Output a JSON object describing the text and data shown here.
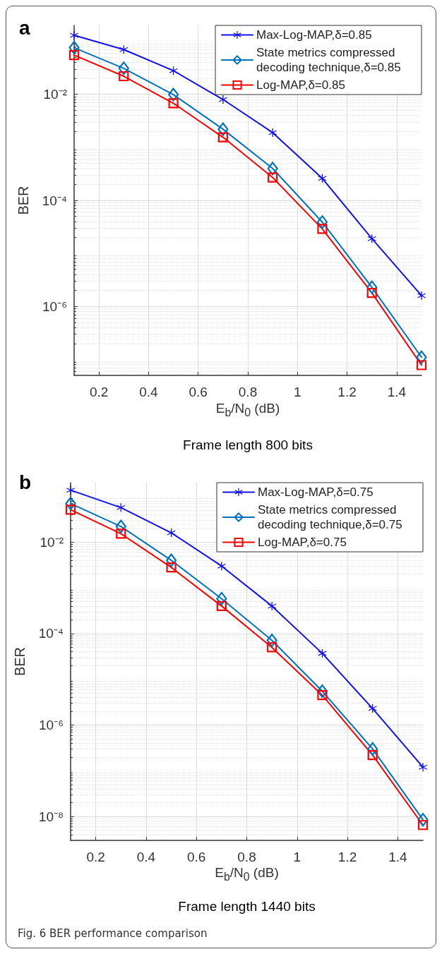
{
  "chart_data": [
    {
      "type": "line",
      "title": "a",
      "xlabel": "E$_{b}$/N$_{0}$ (dB)",
      "ylabel": "BER",
      "annotations": [
        "Frame length 800 bits"
      ],
      "x": [
        0.1,
        0.3,
        0.5,
        0.7,
        0.9,
        1.1,
        1.3,
        1.5
      ],
      "series": [
        {
          "name": "Max-Log-MAP,δ=0.85",
          "color": "#1010f0",
          "marker": "cross",
          "values": [
            0.13,
            0.07,
            0.028,
            0.008,
            0.0019,
            0.00026,
            1.9e-05,
            1.6e-06
          ]
        },
        {
          "name": "State metrics compressed decoding technique,δ=0.85",
          "color": "#0072bd",
          "marker": "diamond",
          "values": [
            0.076,
            0.031,
            0.0099,
            0.0022,
            0.0004,
            3.9e-05,
            2.3e-06,
            1.1e-07
          ]
        },
        {
          "name": "Log-MAP,δ=0.85",
          "color": "#ff0000",
          "marker": "square",
          "values": [
            0.055,
            0.022,
            0.0068,
            0.00155,
            0.00027,
            2.9e-05,
            1.8e-06,
            7.8e-08
          ]
        }
      ],
      "xlim": [
        0.1,
        1.5
      ],
      "xticks": [
        0.2,
        0.4,
        0.6,
        0.8,
        1,
        1.2,
        1.4
      ],
      "ylim": [
        5e-08,
        0.2
      ],
      "yticks": [
        {
          "value": 0.01,
          "label": "10⁻²"
        },
        {
          "value": 0.0001,
          "label": "10⁻⁴"
        },
        {
          "value": 1e-06,
          "label": "10⁻⁶"
        }
      ],
      "log": "y",
      "grid": true,
      "legend": "top right",
      "line_style": "solid"
    },
    {
      "type": "line",
      "title": "b",
      "xlabel": "E$_{b}$/N$_{0}$ (dB)",
      "ylabel": "BER",
      "annotations": [
        "Frame length 1440 bits",
        "Fig. 6 BER performance comparison"
      ],
      "x": [
        0.1,
        0.3,
        0.5,
        0.7,
        0.9,
        1.1,
        1.3,
        1.5
      ],
      "series": [
        {
          "name": "Max-Log-MAP,δ=0.75",
          "color": "#1010f0",
          "marker": "cross",
          "values": [
            0.137,
            0.057,
            0.016,
            0.003,
            0.0004,
            3.7e-05,
            2.3e-06,
            1.2e-07
          ]
        },
        {
          "name": "State metrics compressed decoding technique,δ=0.75",
          "color": "#0072bd",
          "marker": "diamond",
          "values": [
            0.07,
            0.022,
            0.004,
            0.00058,
            7.1e-05,
            5.5e-06,
            3e-07,
            8.5e-09
          ]
        },
        {
          "name": "Log-MAP,δ=0.75",
          "color": "#ff0000",
          "marker": "square",
          "values": [
            0.051,
            0.0153,
            0.0028,
            0.0004,
            5e-05,
            4.5e-06,
            2.2e-07,
            6.5e-09
          ]
        }
      ],
      "xlim": [
        0.1,
        1.5
      ],
      "xticks": [
        0.2,
        0.4,
        0.6,
        0.8,
        1,
        1.2,
        1.4
      ],
      "ylim": [
        3e-09,
        0.2
      ],
      "yticks": [
        {
          "value": 0.01,
          "label": "10⁻²"
        },
        {
          "value": 0.0001,
          "label": "10⁻⁴"
        },
        {
          "value": 1e-06,
          "label": "10⁻⁶"
        },
        {
          "value": 1e-08,
          "label": "10⁻⁸"
        }
      ],
      "log": "y",
      "grid": true,
      "legend": "top right",
      "line_style": "solid"
    }
  ]
}
